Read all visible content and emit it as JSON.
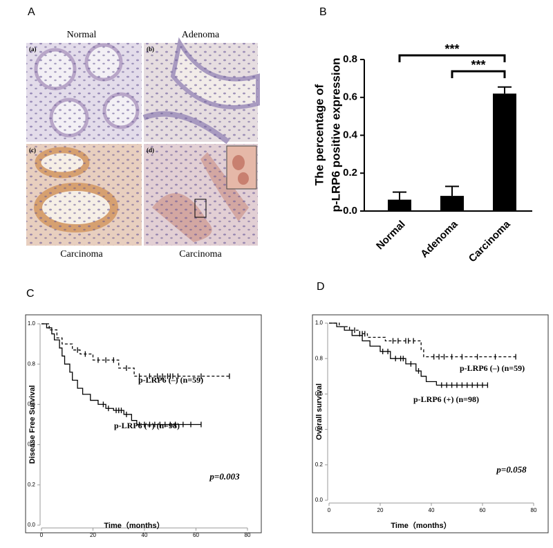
{
  "figure": {
    "panel_labels": [
      "A",
      "B",
      "C",
      "D"
    ],
    "images": [
      {
        "tag": "(a)",
        "caption": "Normal"
      },
      {
        "tag": "(b)",
        "caption": "Adenoma"
      },
      {
        "tag": "(c)",
        "caption": "Carcinoma"
      },
      {
        "tag": "(d)",
        "caption": "Carcinoma"
      }
    ]
  },
  "chart_data": [
    {
      "type": "bar",
      "y_label": [
        "The percentage of",
        "p-LRP6 positive expression"
      ],
      "categories": [
        "Normal",
        "Adenoma",
        "Carcinoma"
      ],
      "values": [
        0.06,
        0.08,
        0.62
      ],
      "errors": [
        0.04,
        0.05,
        0.035
      ],
      "color": "#000000",
      "ylim": [
        0,
        0.8
      ],
      "yticks": [
        {
          "value": 0,
          "label": "0.0"
        },
        0.2,
        0.4,
        0.6,
        0.8
      ],
      "annotations": [
        "***",
        "***"
      ]
    },
    {
      "type": "survival",
      "x_label": "Time（months）",
      "y_label": "Disease Free Survival",
      "annotation": "p=0.003",
      "xlim": [
        0,
        80
      ],
      "xticks": [
        0,
        20,
        40,
        60,
        80
      ],
      "ylim": [
        0,
        1
      ],
      "yticks": [
        {
          "value": 0,
          "label": "0.0"
        },
        0.2,
        0.4,
        0.6,
        0.8,
        {
          "value": 1,
          "label": "1.0"
        }
      ],
      "series": [
        {
          "name": "p-LRP6 (–)  (n=59)",
          "style": "dashed",
          "x": [
            0,
            3,
            6,
            8,
            12,
            15,
            20,
            30,
            36,
            73
          ],
          "values": [
            1,
            0.97,
            0.93,
            0.9,
            0.87,
            0.85,
            0.82,
            0.78,
            0.74,
            0.74
          ],
          "censored_x": [
            14,
            17,
            22,
            25,
            28,
            33,
            38,
            42,
            45,
            47,
            49,
            50,
            51,
            53,
            62,
            73
          ],
          "censored_values": [
            0.87,
            0.85,
            0.82,
            0.82,
            0.82,
            0.78,
            0.74,
            0.74,
            0.74,
            0.74,
            0.74,
            0.74,
            0.74,
            0.74,
            0.74,
            0.74
          ]
        },
        {
          "name": "p-LRP6 (+)  (n=98)",
          "style": "solid",
          "x": [
            0,
            2,
            4,
            5,
            7,
            8,
            9,
            11,
            12,
            14,
            16,
            19,
            22,
            25,
            28,
            32,
            35,
            37,
            62
          ],
          "values": [
            1,
            0.98,
            0.95,
            0.92,
            0.88,
            0.84,
            0.8,
            0.76,
            0.72,
            0.68,
            0.65,
            0.62,
            0.6,
            0.58,
            0.57,
            0.55,
            0.52,
            0.5,
            0.5
          ],
          "censored_x": [
            24,
            26,
            29,
            30,
            31,
            33,
            38,
            40,
            42,
            44,
            46,
            48,
            50,
            52,
            55,
            58,
            62
          ],
          "censored_values": [
            0.6,
            0.58,
            0.57,
            0.57,
            0.57,
            0.55,
            0.5,
            0.5,
            0.5,
            0.5,
            0.5,
            0.5,
            0.5,
            0.5,
            0.5,
            0.5,
            0.5
          ]
        }
      ]
    },
    {
      "type": "survival",
      "x_label": "Time（months）",
      "y_label": "Overall survival",
      "annotation": "p=0.058",
      "xlim": [
        0,
        80
      ],
      "xticks": [
        0,
        20,
        40,
        60,
        80
      ],
      "ylim": [
        0,
        1
      ],
      "yticks": [
        {
          "value": 0,
          "label": "0.0"
        },
        0.2,
        0.4,
        0.6,
        0.8,
        {
          "value": 1,
          "label": "1.0"
        }
      ],
      "series": [
        {
          "name": "p-LRP6 (–)  (n=59)",
          "style": "dashed",
          "x": [
            0,
            4,
            8,
            12,
            15,
            22,
            36,
            37,
            73
          ],
          "values": [
            1,
            0.98,
            0.96,
            0.94,
            0.92,
            0.9,
            0.85,
            0.81,
            0.81
          ],
          "censored_x": [
            10,
            12,
            13,
            14,
            25,
            27,
            30,
            31,
            33,
            41,
            43,
            45,
            48,
            52,
            58,
            65,
            73
          ],
          "censored_values": [
            0.96,
            0.94,
            0.94,
            0.94,
            0.9,
            0.9,
            0.9,
            0.9,
            0.9,
            0.81,
            0.81,
            0.81,
            0.81,
            0.81,
            0.81,
            0.81,
            0.81
          ]
        },
        {
          "name": "p-LRP6 (+)  (n=98)",
          "style": "solid",
          "x": [
            0,
            3,
            6,
            9,
            13,
            16,
            20,
            24,
            30,
            34,
            36,
            38,
            42,
            62
          ],
          "values": [
            1,
            0.98,
            0.96,
            0.93,
            0.9,
            0.87,
            0.84,
            0.8,
            0.77,
            0.73,
            0.7,
            0.67,
            0.65,
            0.65
          ],
          "censored_x": [
            21,
            23,
            26,
            28,
            29,
            32,
            35,
            44,
            46,
            48,
            50,
            52,
            54,
            56,
            58,
            60,
            62
          ],
          "censored_values": [
            0.84,
            0.84,
            0.8,
            0.8,
            0.8,
            0.77,
            0.73,
            0.65,
            0.65,
            0.65,
            0.65,
            0.65,
            0.65,
            0.65,
            0.65,
            0.65,
            0.65
          ]
        }
      ]
    }
  ]
}
